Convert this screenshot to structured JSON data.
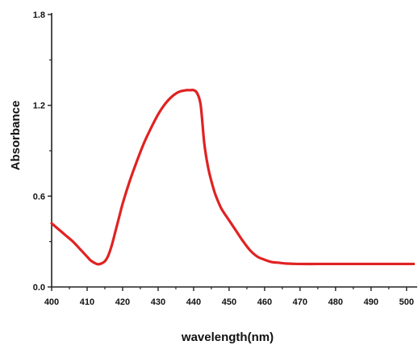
{
  "chart_data": {
    "type": "line",
    "title": "",
    "xlabel": "wavelength(nm)",
    "ylabel": "Absorbance",
    "xlim": [
      400,
      503
    ],
    "ylim": [
      0,
      1.8
    ],
    "x_ticks": [
      400,
      410,
      420,
      430,
      440,
      450,
      460,
      470,
      480,
      490,
      500
    ],
    "x_tick_labels": [
      "400",
      "410",
      "420",
      "430",
      "440",
      "450",
      "460",
      "470",
      "480",
      "490",
      "500"
    ],
    "y_ticks": [
      0,
      0.6,
      1.2,
      1.8
    ],
    "y_tick_labels": [
      "0.0",
      "0.6",
      "1.2",
      "1.8"
    ],
    "grid": false,
    "legend": "none",
    "series": [
      {
        "color": "#e02222",
        "x": [
          400,
          402,
          404,
          406,
          408,
          410,
          411,
          412,
          413,
          414,
          415,
          416,
          417,
          418,
          419,
          420,
          422,
          424,
          426,
          428,
          430,
          432,
          434,
          436,
          438,
          439,
          440,
          441,
          442,
          443,
          444,
          445,
          446,
          447,
          448,
          450,
          452,
          454,
          456,
          458,
          460,
          462,
          464,
          466,
          468,
          470,
          475,
          480,
          490,
          500,
          502
        ],
        "y": [
          0.42,
          0.38,
          0.34,
          0.3,
          0.25,
          0.2,
          0.175,
          0.16,
          0.15,
          0.155,
          0.17,
          0.21,
          0.28,
          0.37,
          0.46,
          0.55,
          0.7,
          0.83,
          0.95,
          1.05,
          1.14,
          1.21,
          1.26,
          1.29,
          1.3,
          1.3,
          1.3,
          1.28,
          1.2,
          0.95,
          0.8,
          0.7,
          0.62,
          0.56,
          0.51,
          0.44,
          0.37,
          0.3,
          0.24,
          0.2,
          0.18,
          0.165,
          0.16,
          0.155,
          0.153,
          0.152,
          0.152,
          0.152,
          0.152,
          0.152,
          0.152
        ]
      }
    ]
  }
}
